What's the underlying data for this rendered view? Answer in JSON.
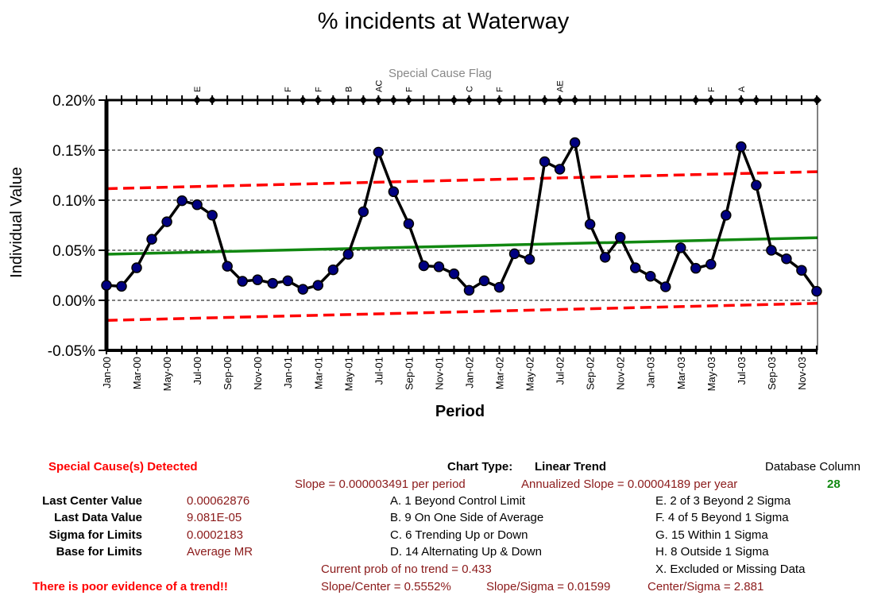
{
  "chart_data": {
    "type": "line",
    "title": "% incidents at Waterway",
    "xlabel": "Period",
    "ylabel": "Individual Value",
    "flag_title": "Special Cause Flag",
    "ylim": [
      -0.0005,
      0.002
    ],
    "yticks": [
      -0.0005,
      0,
      0.0005,
      0.001,
      0.0015,
      0.002
    ],
    "ytick_labels": [
      "-0.05%",
      "0.00%",
      "0.05%",
      "0.10%",
      "0.15%",
      "0.20%"
    ],
    "categories": [
      "Jan-00",
      "Feb-00",
      "Mar-00",
      "Apr-00",
      "May-00",
      "Jun-00",
      "Jul-00",
      "Aug-00",
      "Sep-00",
      "Oct-00",
      "Nov-00",
      "Dec-00",
      "Jan-01",
      "Feb-01",
      "Mar-01",
      "Apr-01",
      "May-01",
      "Jun-01",
      "Jul-01",
      "Aug-01",
      "Sep-01",
      "Oct-01",
      "Nov-01",
      "Dec-01",
      "Jan-02",
      "Feb-02",
      "Mar-02",
      "Apr-02",
      "May-02",
      "Jun-02",
      "Jul-02",
      "Aug-02",
      "Sep-02",
      "Oct-02",
      "Nov-02",
      "Dec-02",
      "Jan-03",
      "Feb-03",
      "Mar-03",
      "Apr-03",
      "May-03",
      "Jun-03",
      "Jul-03",
      "Aug-03",
      "Sep-03",
      "Oct-03",
      "Nov-03",
      "Dec-03"
    ],
    "x_tick_labels": [
      "Jan-00",
      "Mar-00",
      "May-00",
      "Jul-00",
      "Sep-00",
      "Nov-00",
      "Jan-01",
      "Mar-01",
      "May-01",
      "Jul-01",
      "Sep-01",
      "Nov-01",
      "Jan-02",
      "Mar-02",
      "May-02",
      "Jul-02",
      "Sep-02",
      "Nov-02",
      "Jan-03",
      "Mar-03",
      "May-03",
      "Jul-03",
      "Sep-03",
      "Nov-03"
    ],
    "series": [
      {
        "values": [
          0.00015,
          0.00014,
          0.000325,
          0.00061,
          0.000785,
          0.000995,
          0.000955,
          0.00085,
          0.00034,
          0.00019,
          0.000205,
          0.00017,
          0.000195,
          0.00011,
          0.00015,
          0.000305,
          0.00046,
          0.000885,
          0.00148,
          0.001085,
          0.000765,
          0.000345,
          0.000335,
          0.000265,
          0.0001,
          0.000195,
          0.00013,
          0.000465,
          0.00041,
          0.001385,
          0.00131,
          0.001575,
          0.00076,
          0.00043,
          0.00063,
          0.000325,
          0.00024,
          0.000135,
          0.000525,
          0.00032,
          0.00036,
          0.00085,
          0.001535,
          0.00115,
          0.0005,
          0.000415,
          0.0003,
          9e-05
        ],
        "color": "#000080"
      }
    ],
    "center_line": {
      "start": 0.00046,
      "end": 0.000625,
      "color": "#118811"
    },
    "ucl": {
      "start": 0.001115,
      "end": 0.001285,
      "color": "#ff0000"
    },
    "lcl": {
      "start": -0.0002,
      "end": -3e-05,
      "color": "#ff0000"
    },
    "flag_markers": [
      6,
      7,
      13,
      14,
      15,
      17,
      18,
      19,
      20,
      23,
      24,
      26,
      29,
      30,
      31,
      39,
      40,
      42,
      43,
      47
    ],
    "flag_labels": [
      {
        "index": 6,
        "text": "E"
      },
      {
        "index": 12,
        "text": "F"
      },
      {
        "index": 14,
        "text": "F"
      },
      {
        "index": 16,
        "text": "B"
      },
      {
        "index": 18,
        "text": "AC"
      },
      {
        "index": 20,
        "text": "F"
      },
      {
        "index": 24,
        "text": "C"
      },
      {
        "index": 26,
        "text": "F"
      },
      {
        "index": 30,
        "text": "AE"
      },
      {
        "index": 40,
        "text": "F"
      },
      {
        "index": 42,
        "text": "A"
      }
    ],
    "grid": true
  },
  "summary": {
    "special_cause": "Special Cause(s) Detected",
    "chart_type_label": "Chart Type:",
    "chart_type_value": "Linear Trend",
    "database_column_label": "Database Column",
    "database_column_value": "28",
    "slope": "Slope = 0.000003491 per period",
    "annualized_slope": "Annualized Slope = 0.00004189 per year",
    "stats": [
      {
        "label": "Last Center Value",
        "value": "0.00062876"
      },
      {
        "label": "Last Data Value",
        "value": "9.081E-05"
      },
      {
        "label": "Sigma for Limits",
        "value": "0.0002183"
      },
      {
        "label": "Base for Limits",
        "value": "Average MR"
      }
    ],
    "rules_left": [
      "A.  1 Beyond Control Limit",
      "B.  9 On One Side of Average",
      "C.  6 Trending Up or Down",
      "D.  14 Alternating  Up & Down"
    ],
    "rules_right": [
      "E.   2 of 3 Beyond 2 Sigma",
      "F.   4 of 5 Beyond 1 Sigma",
      "G.   15 Within 1 Sigma",
      "H.   8 Outside 1 Sigma",
      "X.   Excluded or Missing Data"
    ],
    "prob_no_trend": "Current prob of no trend = 0.433",
    "slope_center": "Slope/Center = 0.5552%",
    "slope_sigma": "Slope/Sigma = 0.01599",
    "center_sigma": "Center/Sigma = 2.881",
    "trend_verdict": "There is poor evidence of a trend!!"
  }
}
